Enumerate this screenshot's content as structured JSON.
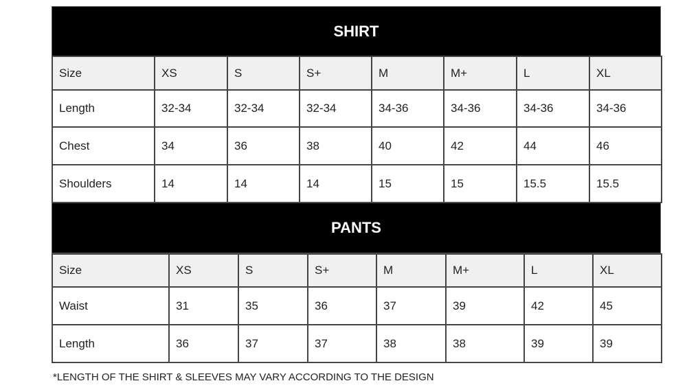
{
  "shirt": {
    "title": "SHIRT",
    "rows": [
      [
        "Size",
        "XS",
        "S",
        "S+",
        "M",
        "M+",
        "L",
        "XL"
      ],
      [
        "Length",
        "32-34",
        "32-34",
        "32-34",
        "34-36",
        "34-36",
        "34-36",
        "34-36"
      ],
      [
        "Chest",
        "34",
        "36",
        "38",
        "40",
        "42",
        "44",
        "46"
      ],
      [
        "Shoulders",
        "14",
        "14",
        "14",
        "15",
        "15",
        "15.5",
        "15.5"
      ]
    ]
  },
  "pants": {
    "title": "PANTS",
    "rows": [
      [
        "Size",
        "XS",
        "S",
        "S+",
        "M",
        "M+",
        "L",
        "XL"
      ],
      [
        "Waist",
        "31",
        "35",
        "36",
        "37",
        "39",
        "42",
        "45"
      ],
      [
        "Length",
        "36",
        "37",
        "37",
        "38",
        "38",
        "39",
        "39"
      ]
    ]
  },
  "footnote": "*LENGTH OF THE SHIRT & SLEEVES MAY VARY ACCORDING TO THE DESIGN"
}
